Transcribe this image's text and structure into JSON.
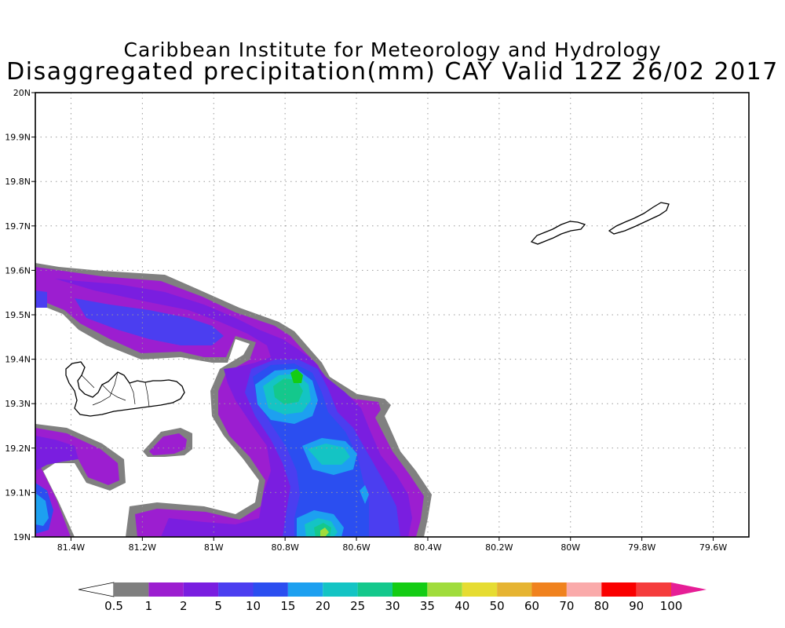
{
  "title_line1": "Caribbean Institute for Meteorology and Hydrology",
  "title_line2": "Disaggregated precipitation(mm) CAY Valid 12Z 26/02 2017",
  "map": {
    "lon_range": [
      -81.5,
      -79.5
    ],
    "lat_range": [
      19.0,
      20.0
    ],
    "grid": true,
    "lon_ticks": [
      {
        "value": -81.4,
        "label": "81.4W"
      },
      {
        "value": -81.2,
        "label": "81.2W"
      },
      {
        "value": -81.0,
        "label": "81W"
      },
      {
        "value": -80.8,
        "label": "80.8W"
      },
      {
        "value": -80.6,
        "label": "80.6W"
      },
      {
        "value": -80.4,
        "label": "80.4W"
      },
      {
        "value": -80.2,
        "label": "80.2W"
      },
      {
        "value": -80.0,
        "label": "80W"
      },
      {
        "value": -79.8,
        "label": "79.8W"
      },
      {
        "value": -79.6,
        "label": "79.6W"
      }
    ],
    "lat_ticks": [
      {
        "value": 20.0,
        "label": "20N"
      },
      {
        "value": 19.9,
        "label": "19.9N"
      },
      {
        "value": 19.8,
        "label": "19.8N"
      },
      {
        "value": 19.7,
        "label": "19.7N"
      },
      {
        "value": 19.6,
        "label": "19.6N"
      },
      {
        "value": 19.5,
        "label": "19.5N"
      },
      {
        "value": 19.4,
        "label": "19.4N"
      },
      {
        "value": 19.3,
        "label": "19.3N"
      },
      {
        "value": 19.2,
        "label": "19.2N"
      },
      {
        "value": 19.1,
        "label": "19.1N"
      },
      {
        "value": 19.0,
        "label": "19N"
      }
    ]
  },
  "colorbar": {
    "labels": [
      "0.5",
      "1",
      "2",
      "5",
      "10",
      "15",
      "20",
      "25",
      "30",
      "35",
      "40",
      "50",
      "60",
      "70",
      "80",
      "90",
      "100"
    ],
    "colors": [
      "#ffffff",
      "#7f7f7f",
      "#9c1ed0",
      "#7a1ee0",
      "#4b3ef0",
      "#2b4ef0",
      "#1da0f0",
      "#14c4c4",
      "#14c88c",
      "#14cc14",
      "#a0dc3c",
      "#e6dc32",
      "#e6b432",
      "#f0821e",
      "#faaaaa",
      "#fa0000",
      "#f53c3c",
      "#e61e96"
    ]
  }
}
